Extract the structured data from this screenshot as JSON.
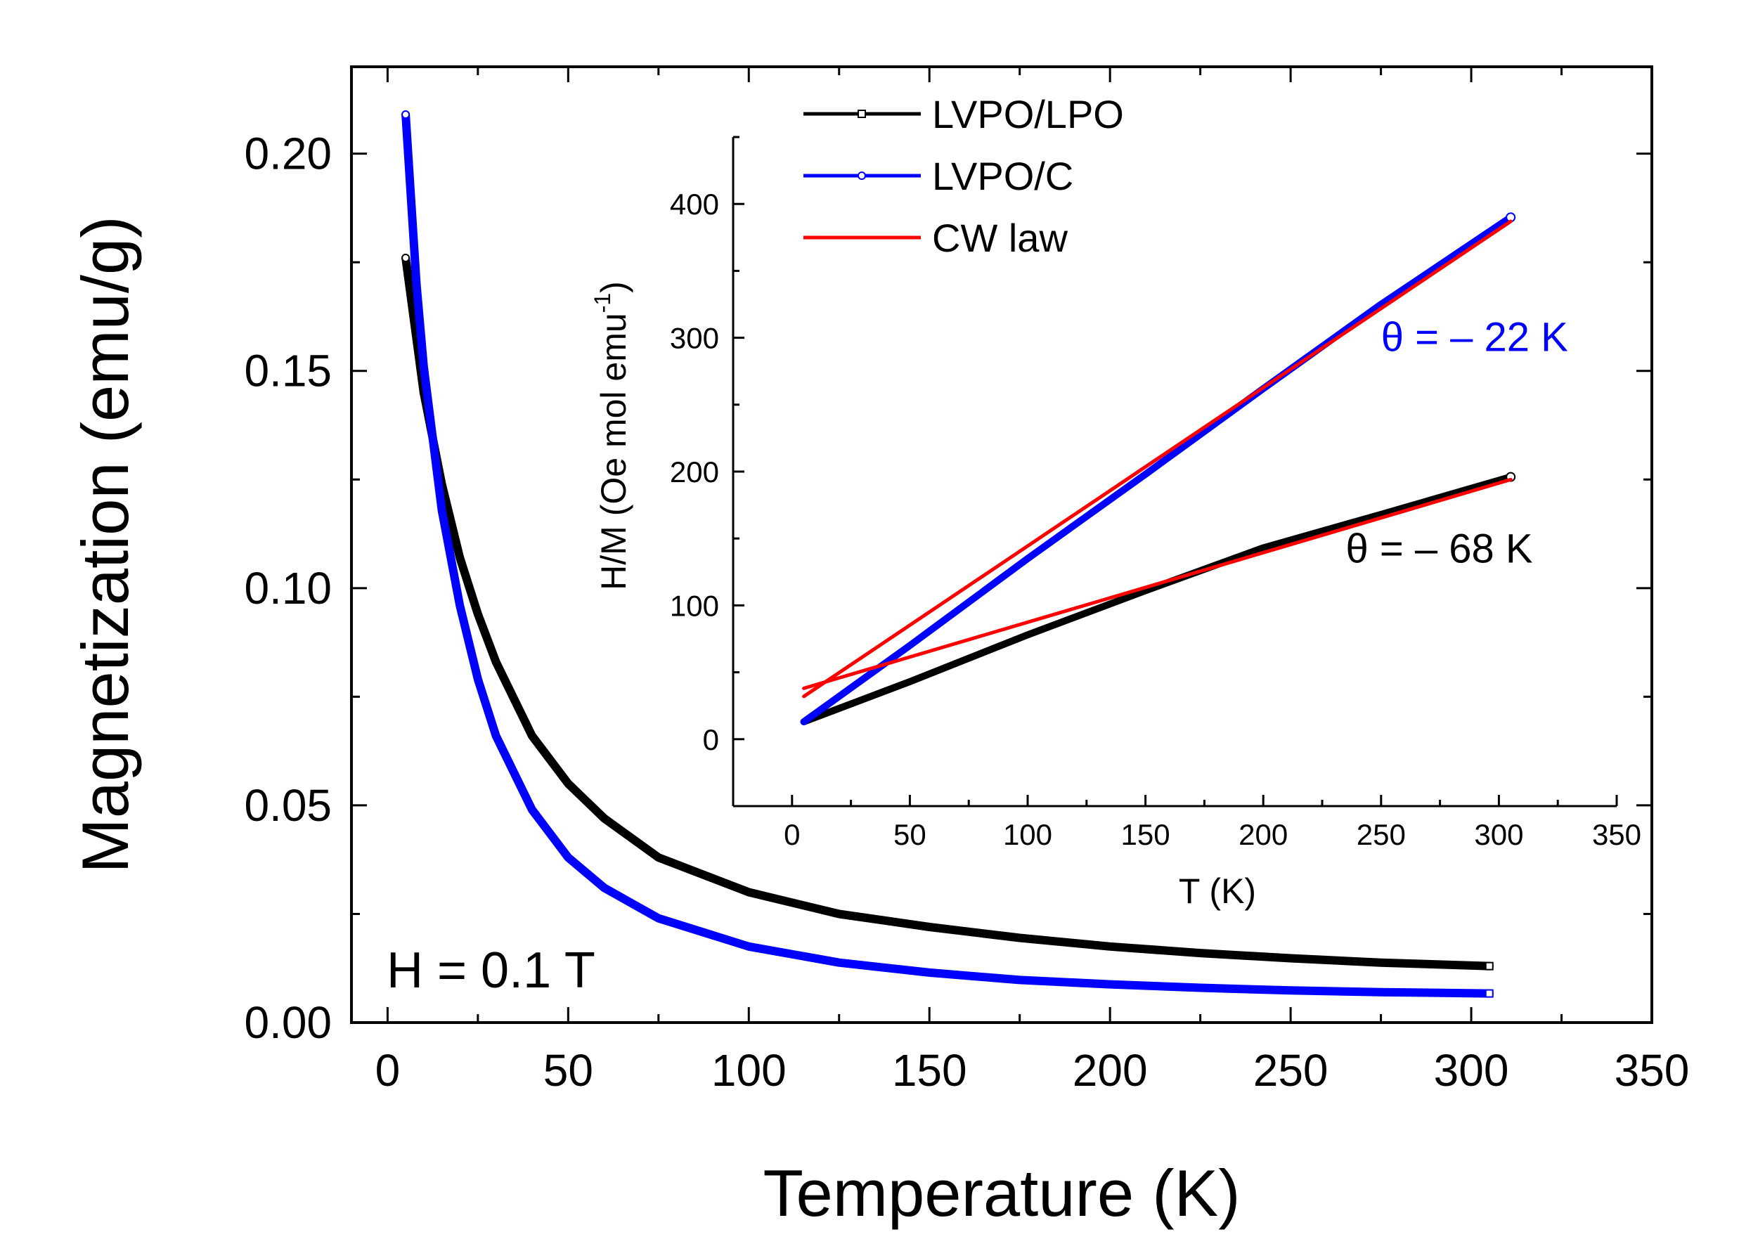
{
  "chart_data": [
    {
      "type": "line",
      "role": "main",
      "title": "",
      "xlabel": "Temperature (K)",
      "ylabel": "Magnetization (emu/g)",
      "xlim": [
        -10,
        350
      ],
      "ylim": [
        0,
        0.22
      ],
      "xticks": [
        0,
        50,
        100,
        150,
        200,
        250,
        300,
        350
      ],
      "yticks": [
        0.0,
        0.05,
        0.1,
        0.15,
        0.2
      ],
      "xtick_labels": [
        "0",
        "50",
        "100",
        "150",
        "200",
        "250",
        "300",
        "350"
      ],
      "ytick_labels": [
        "0.00",
        "0.05",
        "0.10",
        "0.15",
        "0.20"
      ],
      "annotation": "H = 0.1 T",
      "series": [
        {
          "name": "LVPO/LPO",
          "color": "#000000",
          "x": [
            5,
            10,
            15,
            20,
            25,
            30,
            40,
            50,
            60,
            75,
            100,
            125,
            150,
            175,
            200,
            225,
            250,
            275,
            305
          ],
          "values": [
            0.176,
            0.145,
            0.124,
            0.107,
            0.094,
            0.083,
            0.066,
            0.055,
            0.047,
            0.038,
            0.03,
            0.025,
            0.022,
            0.0195,
            0.0175,
            0.016,
            0.0148,
            0.0138,
            0.013
          ]
        },
        {
          "name": "LVPO/C",
          "color": "#0000ff",
          "x": [
            5,
            8,
            10,
            15,
            20,
            25,
            30,
            40,
            50,
            60,
            75,
            100,
            125,
            150,
            175,
            200,
            225,
            250,
            275,
            305
          ],
          "values": [
            0.209,
            0.17,
            0.151,
            0.118,
            0.096,
            0.079,
            0.066,
            0.049,
            0.038,
            0.031,
            0.024,
            0.0175,
            0.0138,
            0.0115,
            0.0098,
            0.0088,
            0.008,
            0.0074,
            0.007,
            0.0067
          ]
        }
      ]
    },
    {
      "type": "line",
      "role": "inset",
      "title": "",
      "xlabel": "T (K)",
      "ylabel": "H/M (Oe mol emu",
      "ylabel_superscript": "-1",
      "ylabel_close": ")",
      "xlim": [
        -25,
        350
      ],
      "ylim": [
        -50,
        450
      ],
      "xticks": [
        0,
        50,
        100,
        150,
        200,
        250,
        300,
        350
      ],
      "yticks": [
        0,
        100,
        200,
        300,
        400
      ],
      "xtick_labels": [
        "0",
        "50",
        "100",
        "150",
        "200",
        "250",
        "300",
        "350"
      ],
      "ytick_labels": [
        "0",
        "100",
        "200",
        "300",
        "400"
      ],
      "series": [
        {
          "name": "LVPO/LPO",
          "color": "#000000",
          "x": [
            5,
            50,
            100,
            150,
            200,
            250,
            305
          ],
          "values": [
            13,
            43,
            78,
            111,
            143,
            168,
            196
          ]
        },
        {
          "name": "LVPO/C",
          "color": "#0000ff",
          "x": [
            5,
            50,
            100,
            150,
            200,
            250,
            305
          ],
          "values": [
            13,
            70,
            135,
            198,
            262,
            325,
            390
          ]
        },
        {
          "name": "CW law",
          "color": "#ff0000",
          "fit_for": "LVPO/LPO",
          "x": [
            5,
            305
          ],
          "values": [
            38,
            194
          ]
        },
        {
          "name": "CW law",
          "color": "#ff0000",
          "fit_for": "LVPO/C",
          "x": [
            5,
            305
          ],
          "values": [
            32,
            387
          ]
        }
      ],
      "legend": [
        {
          "label": "LVPO/LPO",
          "color": "#000000",
          "marker": "square"
        },
        {
          "label": "LVPO/C",
          "color": "#0000ff",
          "marker": "circle"
        },
        {
          "label": "CW law",
          "color": "#ff0000",
          "marker": "none"
        }
      ],
      "annotations": [
        {
          "text": "θ  = – 22 K",
          "color": "#0000ff",
          "x": 250,
          "y": 290
        },
        {
          "text": "θ  = – 68 K",
          "color": "#000000",
          "x": 235,
          "y": 132
        }
      ]
    }
  ]
}
